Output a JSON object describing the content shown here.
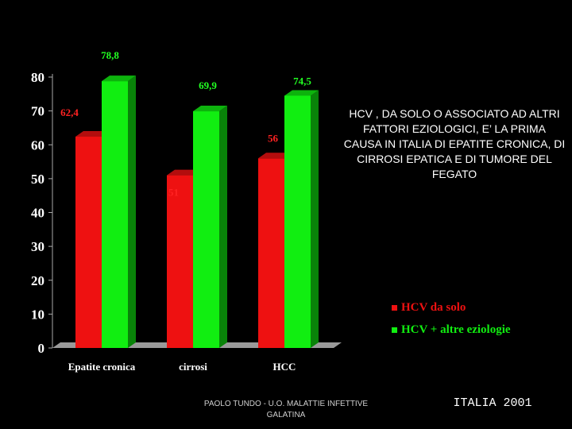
{
  "chart_data": {
    "type": "bar",
    "categories": [
      "Epatite cronica",
      "cirrosi",
      "HCC"
    ],
    "series": [
      {
        "name": "HCV da solo",
        "values": [
          62.4,
          51,
          56
        ],
        "labels": [
          "62,4",
          "51",
          "56"
        ],
        "color": "#ee1111"
      },
      {
        "name": "HCV + altre eziologie",
        "values": [
          78.8,
          69.9,
          74.5
        ],
        "labels": [
          "78,8",
          "69,9",
          "74,5"
        ],
        "color": "#11ee11"
      }
    ],
    "ylim": [
      0,
      80
    ],
    "yticks": [
      0,
      10,
      20,
      30,
      40,
      50,
      60,
      70,
      80
    ],
    "legend_position": "bottom-right",
    "grid": false,
    "style": "3d"
  },
  "annotation": "HCV , DA SOLO O ASSOCIATO AD ALTRI  FATTORI EZIOLOGICI, E’ LA PRIMA CAUSA IN ITALIA DI EPATITE CRONICA, DI CIRROSI EPATICA E DI TUMORE DEL FEGATO",
  "footer": "PAOLO TUNDO - U.O. MALATTIE INFETTIVE GALATINA",
  "year_label": "ITALIA 2001"
}
